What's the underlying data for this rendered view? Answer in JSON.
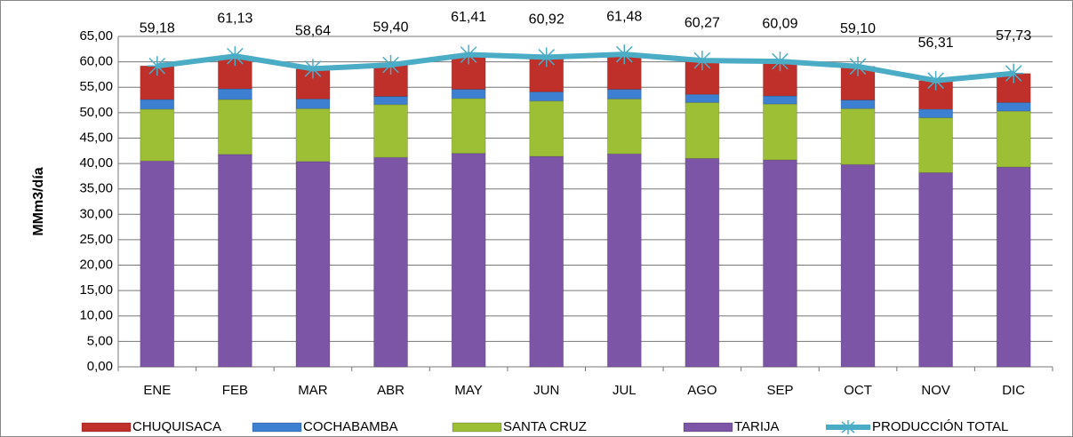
{
  "chart_data": {
    "type": "bar",
    "stacked": true,
    "y_label": "MMm3/día",
    "categories": [
      "ENE",
      "FEB",
      "MAR",
      "ABR",
      "MAY",
      "JUN",
      "JUL",
      "AGO",
      "SEP",
      "OCT",
      "NOV",
      "DIC"
    ],
    "series": [
      {
        "name": "CHUQUISACA",
        "type": "bar",
        "color": "#c0302a",
        "values": [
          6.6,
          6.4,
          5.9,
          6.2,
          6.8,
          6.8,
          6.9,
          6.7,
          6.8,
          6.6,
          5.6,
          5.7
        ]
      },
      {
        "name": "COCHABAMBA",
        "type": "bar",
        "color": "#3d7fd0",
        "values": [
          1.9,
          2.1,
          1.9,
          1.6,
          1.8,
          1.8,
          1.9,
          1.6,
          1.6,
          1.7,
          1.7,
          1.7
        ]
      },
      {
        "name": "SANTA CRUZ",
        "type": "bar",
        "color": "#9cbf36",
        "values": [
          10.2,
          10.8,
          10.4,
          10.4,
          10.8,
          10.9,
          10.8,
          11.0,
          11.0,
          11.0,
          10.8,
          11.0
        ]
      },
      {
        "name": "TARIJA",
        "type": "bar",
        "color": "#7d55a6",
        "values": [
          40.5,
          41.8,
          40.4,
          41.2,
          42.0,
          41.4,
          41.9,
          41.0,
          40.7,
          39.8,
          38.2,
          39.3
        ]
      },
      {
        "name": "PRODUCCIÓN TOTAL",
        "type": "line",
        "color": "#4bacc6",
        "values": [
          59.18,
          61.13,
          58.64,
          59.4,
          61.41,
          60.92,
          61.48,
          60.27,
          60.09,
          59.1,
          56.31,
          57.73
        ],
        "value_labels": [
          "59,18",
          "61,13",
          "58,64",
          "59,40",
          "61,41",
          "60,92",
          "61,48",
          "60,27",
          "60,09",
          "59,10",
          "56,31",
          "57,73"
        ]
      }
    ],
    "ylim": [
      0,
      65
    ],
    "yticks": [
      {
        "value": 0,
        "label": "0,00"
      },
      {
        "value": 5,
        "label": "5,00"
      },
      {
        "value": 10,
        "label": "10,00"
      },
      {
        "value": 15,
        "label": "15,00"
      },
      {
        "value": 20,
        "label": "20,00"
      },
      {
        "value": 25,
        "label": "25,00"
      },
      {
        "value": 30,
        "label": "30,00"
      },
      {
        "value": 35,
        "label": "35,00"
      },
      {
        "value": 40,
        "label": "40,00"
      },
      {
        "value": 45,
        "label": "45,00"
      },
      {
        "value": 50,
        "label": "50,00"
      },
      {
        "value": 55,
        "label": "55,00"
      },
      {
        "value": 60,
        "label": "60,00"
      },
      {
        "value": 65,
        "label": "65,00"
      }
    ],
    "grid": true,
    "legend": "bottom"
  }
}
